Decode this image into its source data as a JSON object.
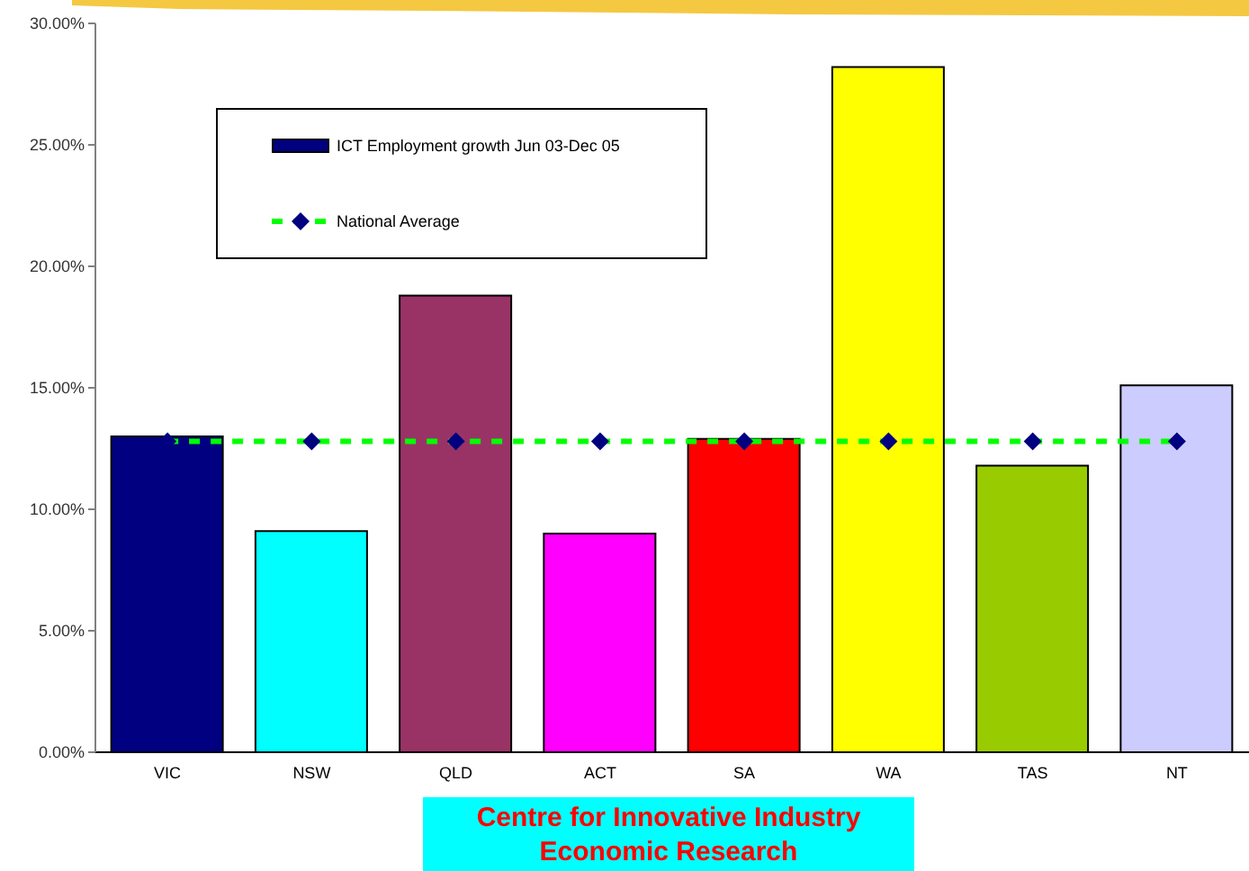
{
  "chart_data": {
    "type": "bar",
    "categories": [
      "VIC",
      "NSW",
      "QLD",
      "ACT",
      "SA",
      "WA",
      "TAS",
      "NT"
    ],
    "series": [
      {
        "name": "ICT Employment growth Jun 03-Dec 05",
        "colors": [
          "#000080",
          "#00ffff",
          "#993366",
          "#ff00ff",
          "#ff0000",
          "#ffff00",
          "#99cc00",
          "#ccccff"
        ],
        "values": [
          13.0,
          9.1,
          18.8,
          9.0,
          12.9,
          28.2,
          11.8,
          15.1
        ]
      },
      {
        "name": "National Average",
        "type": "line",
        "color": "#00ff00",
        "colors": [
          "#000080",
          "#000080",
          "#000080",
          "#000080",
          "#000080",
          "#000080",
          "#000080",
          "#000080"
        ],
        "marker": "diamond",
        "line_style": "dashed",
        "values": [
          12.8,
          12.8,
          12.8,
          12.8,
          12.8,
          12.8,
          12.8,
          12.8
        ]
      }
    ],
    "ylim": [
      0,
      30
    ],
    "yticks": [
      {
        "value": 0,
        "label": "0.00%"
      },
      {
        "value": 5,
        "label": "5.00%"
      },
      {
        "value": 10,
        "label": "10.00%"
      },
      {
        "value": 15,
        "label": "15.00%"
      },
      {
        "value": 20,
        "label": "20.00%"
      },
      {
        "value": 25,
        "label": "25.00%"
      },
      {
        "value": 30,
        "label": "30.00%"
      }
    ],
    "legend": "top left",
    "annotations": [
      "Centre for Innovative Industry Economic Research"
    ]
  }
}
